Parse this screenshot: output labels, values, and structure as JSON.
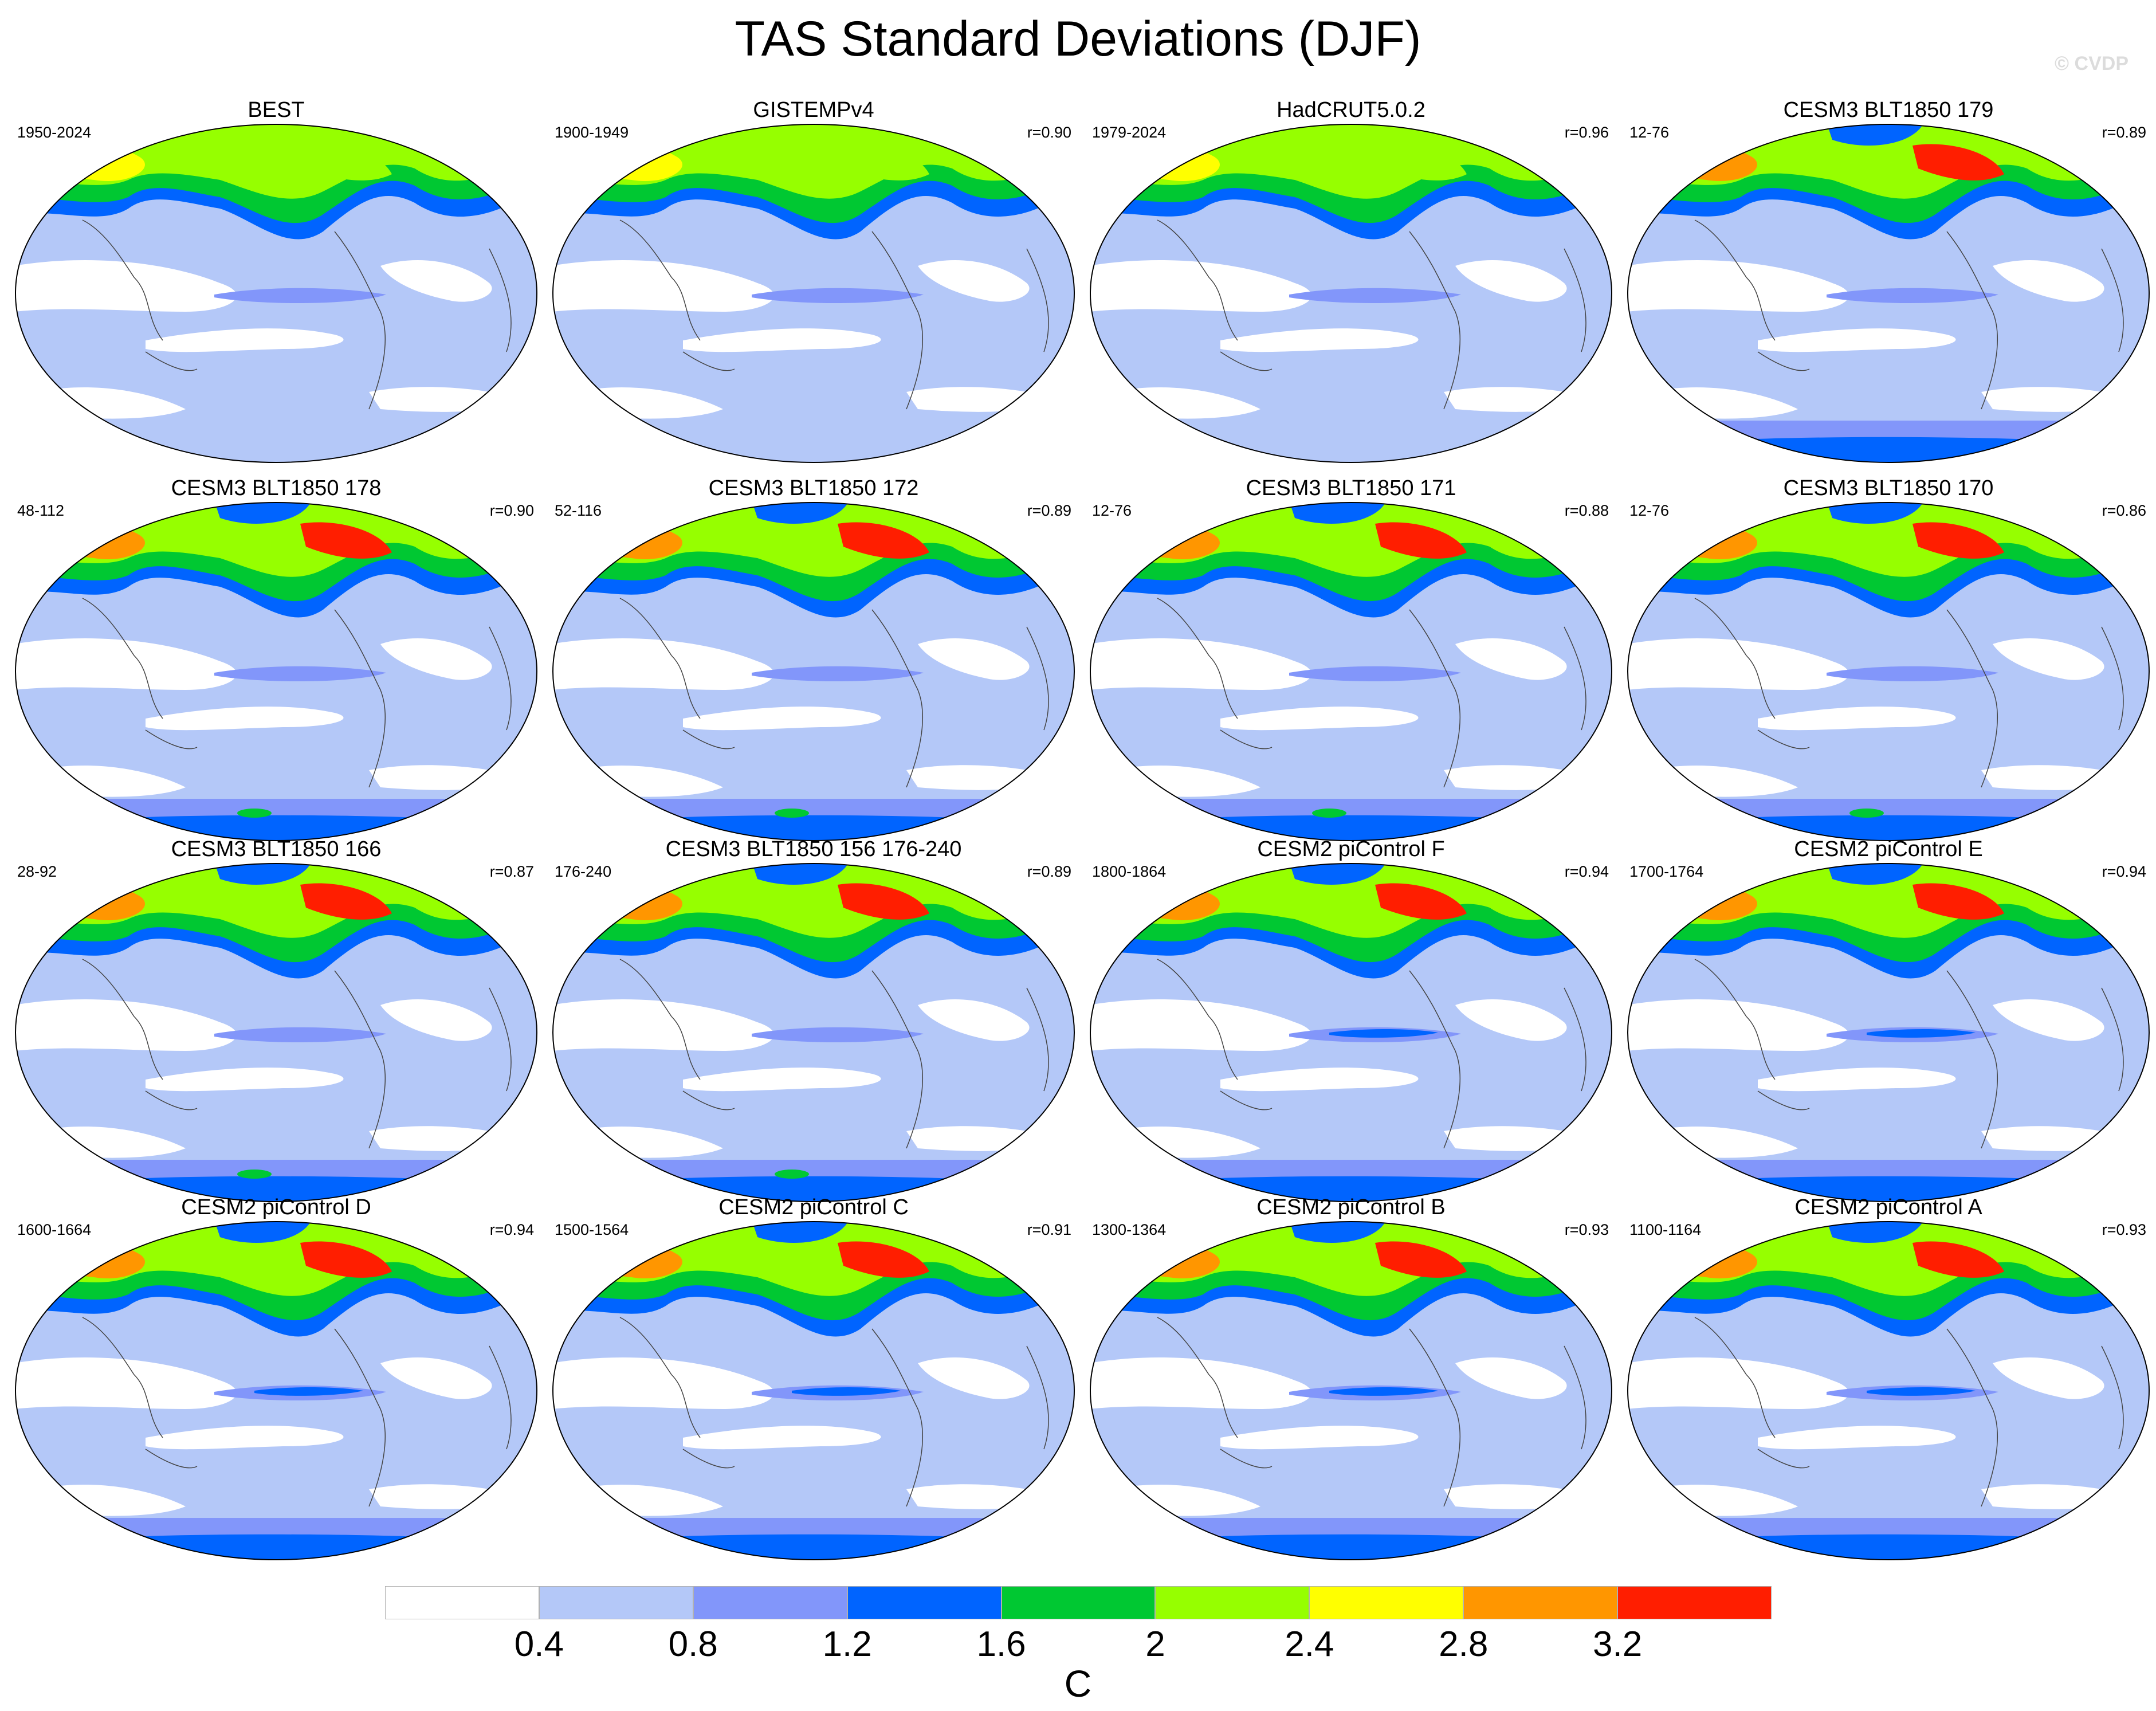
{
  "title": "TAS Standard Deviations (DJF)",
  "watermark": "© CVDP",
  "panels": [
    {
      "name": "BEST",
      "years": "1950-2024",
      "corr": ""
    },
    {
      "name": "GISTEMPv4",
      "years": "1900-1949",
      "corr": "r=0.90"
    },
    {
      "name": "HadCRUT5.0.2",
      "years": "1979-2024",
      "corr": "r=0.96"
    },
    {
      "name": "CESM3 BLT1850 179",
      "years": "12-76",
      "corr": "r=0.89"
    },
    {
      "name": "CESM3 BLT1850 178",
      "years": "48-112",
      "corr": "r=0.90"
    },
    {
      "name": "CESM3 BLT1850 172",
      "years": "52-116",
      "corr": "r=0.89"
    },
    {
      "name": "CESM3 BLT1850 171",
      "years": "12-76",
      "corr": "r=0.88"
    },
    {
      "name": "CESM3 BLT1850 170",
      "years": "12-76",
      "corr": "r=0.86"
    },
    {
      "name": "CESM3 BLT1850 166",
      "years": "28-92",
      "corr": "r=0.87"
    },
    {
      "name": "CESM3 BLT1850 156 176-240",
      "years": "176-240",
      "corr": "r=0.89"
    },
    {
      "name": "CESM2 piControl F",
      "years": "1800-1864",
      "corr": "r=0.94"
    },
    {
      "name": "CESM2 piControl E",
      "years": "1700-1764",
      "corr": "r=0.94"
    },
    {
      "name": "CESM2 piControl D",
      "years": "1600-1664",
      "corr": "r=0.94"
    },
    {
      "name": "CESM2 piControl C",
      "years": "1500-1564",
      "corr": "r=0.91"
    },
    {
      "name": "CESM2 piControl B",
      "years": "1300-1364",
      "corr": "r=0.93"
    },
    {
      "name": "CESM2 piControl A",
      "years": "1100-1164",
      "corr": "r=0.93"
    }
  ],
  "colorbar": {
    "colors": [
      "#ffffff",
      "#b4c8f8",
      "#8296fa",
      "#0064ff",
      "#00c832",
      "#96ff00",
      "#ffff00",
      "#ff9600",
      "#ff1e00"
    ],
    "ticks": [
      "0.4",
      "0.8",
      "1.2",
      "1.6",
      "2",
      "2.4",
      "2.8",
      "3.2"
    ],
    "unit": "C"
  }
}
